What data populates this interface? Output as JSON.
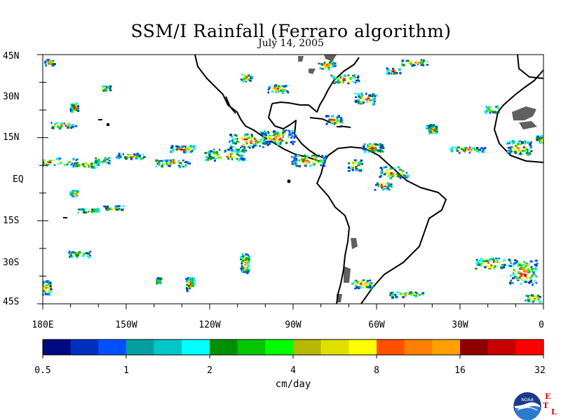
{
  "title": "SSM/I Rainfall (Ferraro algorithm)",
  "date": "July 14, 2005",
  "lat_labels": [
    "45N",
    "30N",
    "15N",
    "EQ",
    "15S",
    "30S",
    "45S"
  ],
  "lon_labels": [
    "180E",
    "150W",
    "120W",
    "90W",
    "60W",
    "30W",
    "0"
  ],
  "colorbar": {
    "units": "cm/day",
    "tick_labels": [
      "0.5",
      "1",
      "2",
      "4",
      "8",
      "16",
      "32"
    ],
    "colors": [
      "#000a80",
      "#0030c0",
      "#0050ff",
      "#00a0a0",
      "#00c8c8",
      "#00ffff",
      "#009000",
      "#00c800",
      "#00ff00",
      "#b8b800",
      "#e0e000",
      "#ffff00",
      "#ff5000",
      "#ff8000",
      "#ffa000",
      "#900000",
      "#c80000",
      "#ff0000"
    ]
  },
  "logo": {
    "noaa_text": "NOAA",
    "etl_letters": [
      "E",
      "T",
      "L"
    ]
  }
}
